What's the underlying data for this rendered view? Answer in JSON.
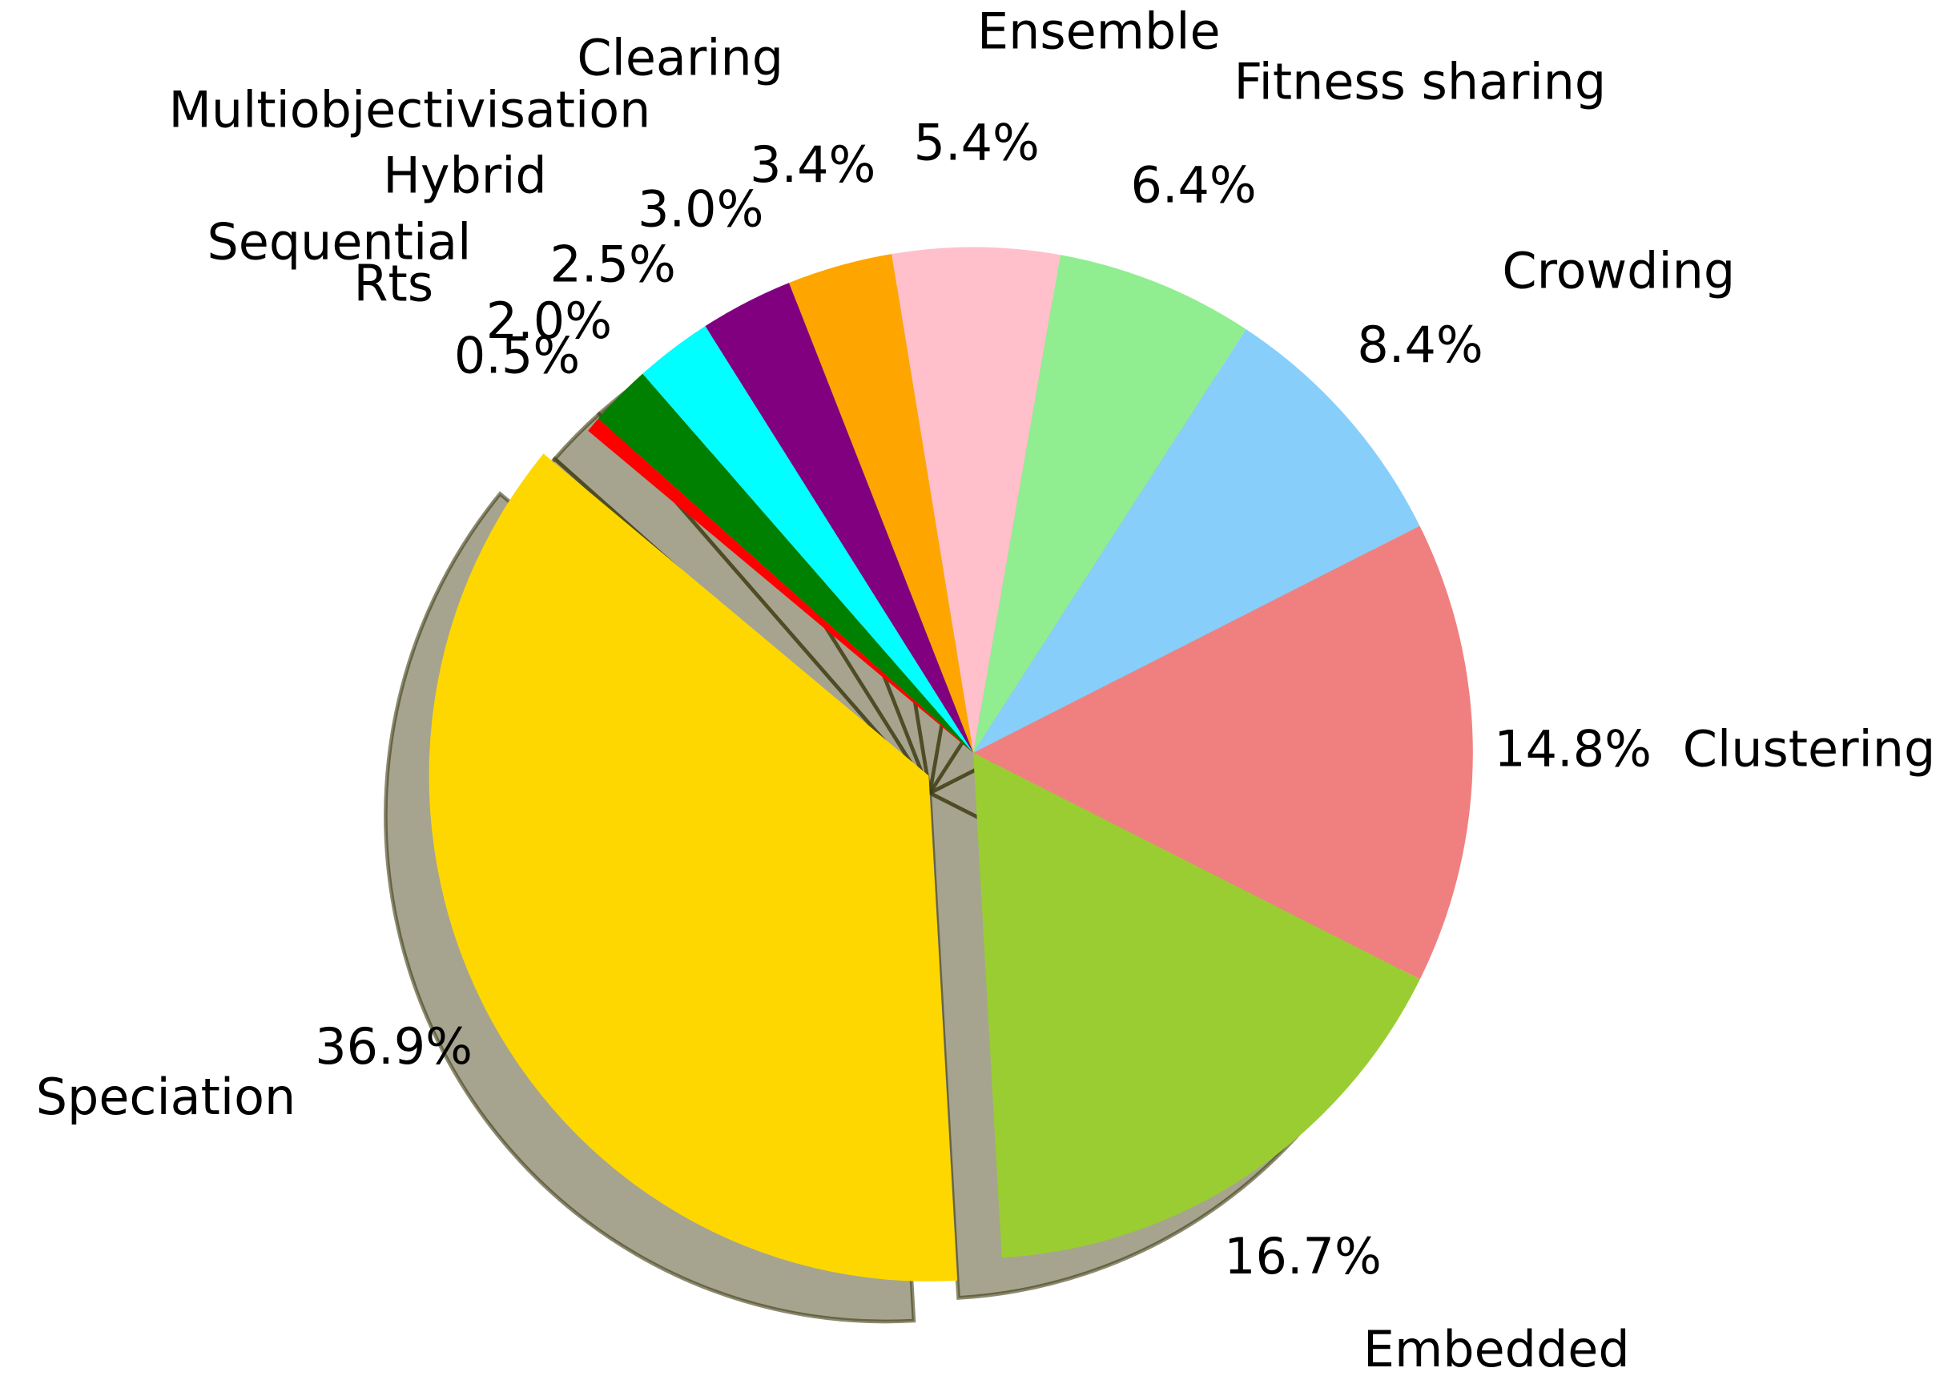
{
  "chart_data": {
    "type": "pie",
    "categories": [
      "Clustering",
      "Crowding",
      "Fitness sharing",
      "Ensemble",
      "Clearing",
      "Multiobjectivisation",
      "Hybrid",
      "Sequential",
      "Rts",
      "Speciation",
      "Embedded"
    ],
    "values": [
      14.8,
      8.4,
      6.4,
      5.4,
      3.4,
      3.0,
      2.5,
      2.0,
      0.5,
      36.9,
      16.7
    ],
    "value_labels": [
      "14.8%",
      "8.4%",
      "6.4%",
      "5.4%",
      "3.4%",
      "3.0%",
      "2.5%",
      "2.0%",
      "0.5%",
      "36.9%",
      "16.7%"
    ],
    "colors": [
      "#f08080",
      "#87cefa",
      "#90ee90",
      "#ffc0cb",
      "#ffa500",
      "#800080",
      "#00ffff",
      "#008000",
      "#ff0000",
      "#ffd700",
      "#9acd32"
    ],
    "shadow": true
  }
}
